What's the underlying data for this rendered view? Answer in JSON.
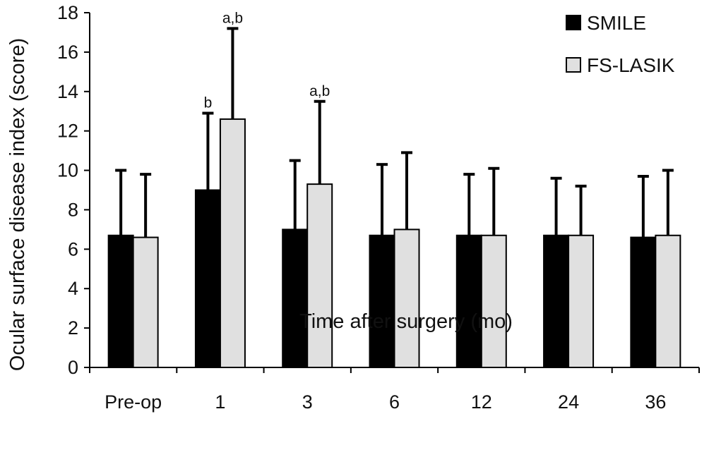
{
  "chart_data": {
    "type": "bar",
    "title": "",
    "xlabel": "Time after surgery (mo)",
    "ylabel": "Ocular surface disease index (score)",
    "ylim": [
      0,
      18
    ],
    "yticks": [
      0,
      2,
      4,
      6,
      8,
      10,
      12,
      14,
      16,
      18
    ],
    "categories": [
      "Pre-op",
      "1",
      "3",
      "6",
      "12",
      "24",
      "36"
    ],
    "grid": false,
    "legend_position": "top-right",
    "series": [
      {
        "name": "SMILE",
        "color": "#000000",
        "values": [
          6.7,
          9.0,
          7.0,
          6.7,
          6.7,
          6.7,
          6.6
        ],
        "error_plus": [
          3.3,
          3.9,
          3.5,
          3.6,
          3.1,
          2.9,
          3.1
        ],
        "annotations": [
          "",
          "b",
          "",
          "",
          "",
          "",
          ""
        ]
      },
      {
        "name": "FS-LASIK",
        "color": "#e0e0e0",
        "values": [
          6.6,
          12.6,
          9.3,
          7.0,
          6.7,
          6.7,
          6.7
        ],
        "error_plus": [
          3.2,
          4.6,
          4.2,
          3.9,
          3.4,
          2.5,
          3.3
        ],
        "annotations": [
          "",
          "a,b",
          "a,b",
          "",
          "",
          "",
          ""
        ]
      }
    ]
  }
}
